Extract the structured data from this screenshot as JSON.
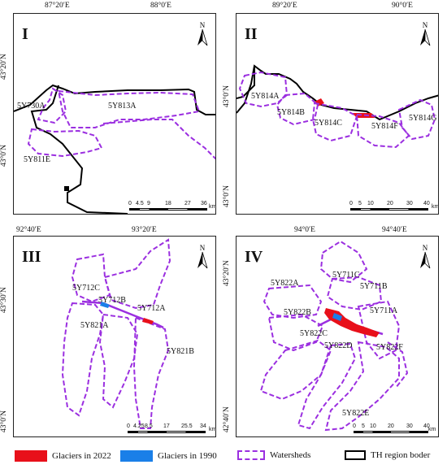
{
  "panels": [
    {
      "id": "I",
      "title": "I",
      "top_coords": [
        "87°20′E",
        "88°0′E"
      ],
      "left_coords": [
        "43°20′N",
        "43°0′N"
      ],
      "labels": [
        "5Y730A",
        "5Y813A",
        "5Y811E"
      ],
      "scale_ticks": [
        "0",
        "4.5",
        "9",
        "18",
        "27",
        "36"
      ],
      "scale_unit": "km",
      "north": "N"
    },
    {
      "id": "II",
      "title": "II",
      "top_coords": [
        "89°20′E",
        "90°0′E"
      ],
      "left_coords": [
        "43°0′N",
        "43°0′N"
      ],
      "labels": [
        "5Y814A",
        "5Y814B",
        "5Y814C",
        "5Y814F",
        "5Y814G"
      ],
      "scale_ticks": [
        "0",
        "5",
        "10",
        "20",
        "30",
        "40"
      ],
      "scale_unit": "km",
      "north": "N"
    },
    {
      "id": "III",
      "title": "III",
      "top_coords": [
        "92°40′E",
        "93°20′E"
      ],
      "left_coords": [
        "43°30′N",
        "43°0′N"
      ],
      "labels": [
        "5Y712C",
        "5Y712B",
        "5Y712A",
        "5Y821A",
        "5Y821B"
      ],
      "scale_ticks": [
        "0",
        "4.25",
        "8.5",
        "17",
        "25.5",
        "34"
      ],
      "scale_unit": "km",
      "north": "N"
    },
    {
      "id": "IV",
      "title": "IV",
      "top_coords": [
        "94°0′E",
        "94°40′E"
      ],
      "left_coords": [
        "43°20′N",
        "42°40′N"
      ],
      "labels": [
        "5Y822A",
        "5Y711C",
        "5Y711B",
        "5Y822B",
        "5Y711A",
        "5Y822C",
        "5Y822D",
        "5Y822F",
        "5Y822E"
      ],
      "scale_ticks": [
        "0",
        "5",
        "10",
        "20",
        "30",
        "40"
      ],
      "scale_unit": "km",
      "north": "N"
    }
  ],
  "legend": {
    "glaciers_2022": "Glaciers in 2022",
    "glaciers_1990": "Glaciers in 1990",
    "watersheds": "Watersheds",
    "th_region": "TH region boder"
  },
  "colors": {
    "glacier_2022": "#e8101a",
    "glacier_1990": "#1a7fe8",
    "watershed": "#9b2fe0",
    "boundary": "#000000"
  }
}
